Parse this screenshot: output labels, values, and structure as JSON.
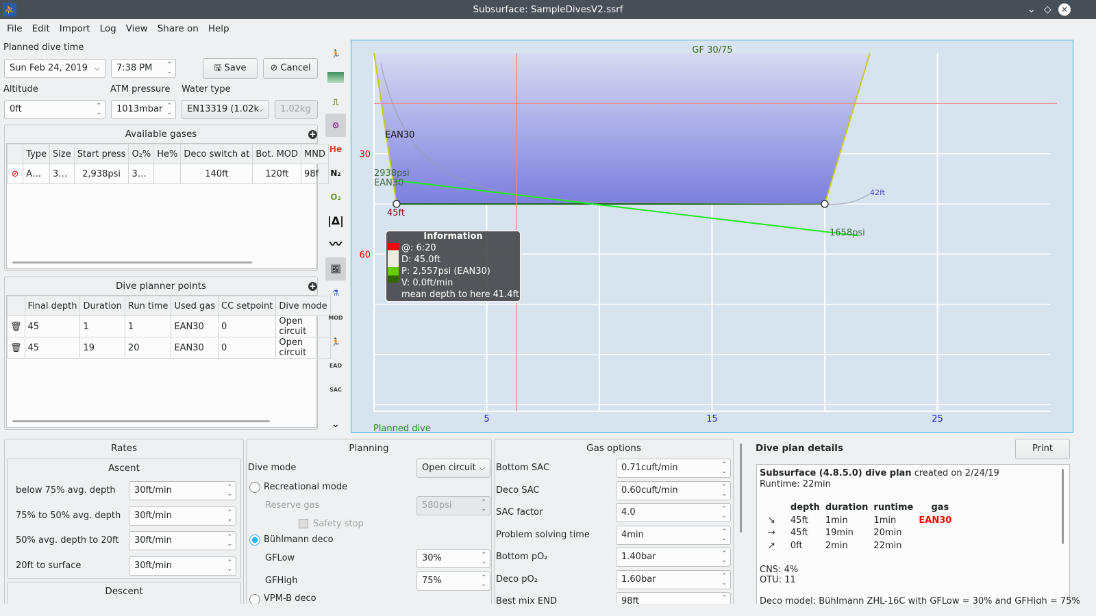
{
  "window": {
    "title": "Subsurface: SampleDivesV2.ssrf"
  },
  "menu": [
    "File",
    "Edit",
    "Import",
    "Log",
    "View",
    "Share on",
    "Help"
  ],
  "planner": {
    "planned_time_label": "Planned dive time",
    "date": "Sun Feb 24, 2019",
    "time": "7:38 PM",
    "save": "Save",
    "cancel": "Cancel",
    "altitude_label": "Altitude",
    "altitude": "0ft",
    "atm_label": "ATM pressure",
    "atm": "1013mbar",
    "water_label": "Water type",
    "water": "EN13319 (1.02k",
    "water_density": "1.02kg"
  },
  "gases": {
    "title": "Available gases",
    "headers": [
      "Type",
      "Size",
      "Start press",
      "O₂%",
      "He%",
      "Deco switch at",
      "Bot. MOD",
      "MND"
    ],
    "rows": [
      [
        "A…",
        "3…",
        "2,938psi",
        "3…",
        "",
        "140ft",
        "120ft",
        "98f"
      ]
    ]
  },
  "points": {
    "title": "Dive planner points",
    "headers": [
      "Final depth",
      "Duration",
      "Run time",
      "Used gas",
      "CC setpoint",
      "Dive mode"
    ],
    "rows": [
      [
        "45",
        "1",
        "1",
        "EAN30",
        "0",
        "Open circuit"
      ],
      [
        "45",
        "19",
        "20",
        "EAN30",
        "0",
        "Open circuit"
      ]
    ]
  },
  "toolbar_icons": [
    "profile-ruler-icon",
    "tissue-heat-icon",
    "ceiling-icon",
    "calculated-ceiling-icon",
    "he-icon",
    "n2-icon",
    "o2-icon",
    "ruler-icon",
    "scale-graph-icon",
    "picture-icon",
    "gas-pressure-icon",
    "mod-icon",
    "npd-icon",
    "ead-icon",
    "sac-icon"
  ],
  "toolbar_labels": {
    "he": "He",
    "n2": "N₂",
    "o2": "O₂",
    "mod": "MOD",
    "ead": "EAD",
    "sac": "SAC"
  },
  "chart_data": {
    "type": "line",
    "title": "GF 30/75",
    "footer": "Planned dive",
    "x_ticks": [
      "5",
      "15",
      "25"
    ],
    "x_tick_values": [
      5,
      15,
      25
    ],
    "y_ticks": [
      "30",
      "60"
    ],
    "y_tick_values": [
      30,
      60
    ],
    "xlim": [
      0,
      30
    ],
    "ylim": [
      0,
      107
    ],
    "depth_profile": {
      "x": [
        0,
        1,
        20,
        22
      ],
      "y": [
        0,
        45,
        45,
        0
      ]
    },
    "pressure": {
      "x": [
        1,
        21.5
      ],
      "psi": [
        2938,
        1658
      ]
    },
    "labels": {
      "gas_top": "EAN30",
      "start_pressure": "2938psi",
      "start_gas": "EAN30",
      "max_depth": "45ft",
      "end_pressure": "1658psi",
      "ceiling": "42ft"
    },
    "cursor_time": 6.33,
    "tooltip": {
      "title": "Information",
      "lines": [
        "@: 6:20",
        "D: 45.0ft",
        "P: 2,557psi (EAN30)",
        "V: 0.0ft/min",
        "mean depth to here 41.4ft"
      ]
    }
  },
  "rates": {
    "title": "Rates",
    "ascent_title": "Ascent",
    "descent_title": "Descent",
    "ascent": [
      {
        "label": "below 75% avg. depth",
        "value": "30ft/min"
      },
      {
        "label": "75% to 50% avg. depth",
        "value": "30ft/min"
      },
      {
        "label": "50% avg. depth to 20ft",
        "value": "30ft/min"
      },
      {
        "label": "20ft to surface",
        "value": "30ft/min"
      }
    ]
  },
  "planning": {
    "title": "Planning",
    "dive_mode_label": "Dive mode",
    "dive_mode": "Open circuit",
    "recreational": "Recreational mode",
    "reserve_label": "Reserve gas",
    "reserve": "580psi",
    "safety": "Safety stop",
    "buhlmann": "Bühlmann deco",
    "gflow_label": "GFLow",
    "gflow": "30%",
    "gfhigh_label": "GFHigh",
    "gfhigh": "75%",
    "vpm": "VPM-B deco"
  },
  "gasopts": {
    "title": "Gas options",
    "rows": [
      {
        "label": "Bottom SAC",
        "value": "0.71cuft/min"
      },
      {
        "label": "Deco SAC",
        "value": "0.60cuft/min"
      },
      {
        "label": "SAC factor",
        "value": "4.0"
      },
      {
        "label": "Problem solving time",
        "value": "4min"
      },
      {
        "label": "Bottom pO₂",
        "value": "1.40bar"
      },
      {
        "label": "Deco pO₂",
        "value": "1.60bar"
      },
      {
        "label": "Best mix END",
        "value": "98ft"
      }
    ]
  },
  "details": {
    "title": "Dive plan details",
    "print": "Print",
    "heading_bold": "Subsurface (4.8.5.0) dive plan",
    "heading_rest": " created on 2/24/19",
    "runtime": "Runtime: 22min",
    "headers": [
      "depth",
      "duration",
      "runtime",
      "gas"
    ],
    "rows": [
      [
        "↘",
        "45ft",
        "1min",
        "1min",
        "EAN30"
      ],
      [
        "→",
        "45ft",
        "19min",
        "20min",
        ""
      ],
      [
        "↗",
        "0ft",
        "2min",
        "22min",
        ""
      ]
    ],
    "cns": "CNS: 4%",
    "otu": "OTU: 11",
    "deco_model": "Deco model: Bühlmann ZHL-16C with GFLow = 30% and GFHigh = 75%",
    "gas_color": "#ff0000"
  }
}
